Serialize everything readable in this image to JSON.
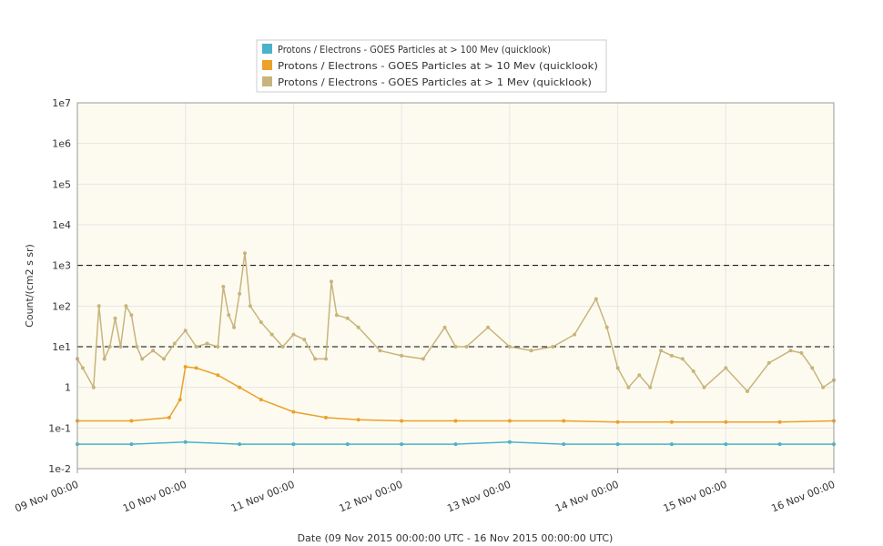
{
  "chart_data": {
    "type": "line",
    "title": "",
    "xlabel": "Date (09 Nov 2015 00:00:00 UTC - 16 Nov 2015 00:00:00 UTC)",
    "ylabel": "Count/(cm2 s sr)",
    "x_unit": "days since 09 Nov 2015 00:00 UTC",
    "xlim": [
      0,
      7
    ],
    "ylim": [
      0.01,
      10000000
    ],
    "y_scale": "log",
    "x_ticks": [
      {
        "x": 0,
        "label": "09 Nov 00:00"
      },
      {
        "x": 1,
        "label": "10 Nov 00:00"
      },
      {
        "x": 2,
        "label": "11 Nov 00:00"
      },
      {
        "x": 3,
        "label": "12 Nov 00:00"
      },
      {
        "x": 4,
        "label": "13 Nov 00:00"
      },
      {
        "x": 5,
        "label": "14 Nov 00:00"
      },
      {
        "x": 6,
        "label": "15 Nov 00:00"
      },
      {
        "x": 7,
        "label": "16 Nov 00:00"
      }
    ],
    "y_ticks": [
      {
        "v": 0.01,
        "label": "1e-2"
      },
      {
        "v": 0.1,
        "label": "1e-1"
      },
      {
        "v": 1,
        "label": "1"
      },
      {
        "v": 10,
        "label": "1e1"
      },
      {
        "v": 100,
        "label": "1e2"
      },
      {
        "v": 1000,
        "label": "1e3"
      },
      {
        "v": 10000,
        "label": "1e4"
      },
      {
        "v": 100000,
        "label": "1e5"
      },
      {
        "v": 1000000,
        "label": "1e6"
      },
      {
        "v": 10000000,
        "label": "1e7"
      }
    ],
    "threshold_lines": [
      10,
      1000
    ],
    "grid": true,
    "legend_position": "top-center",
    "colors": {
      "plot_bg": "#fdfbf0",
      "grid": "#e6e6e6",
      "axis": "#999999",
      "threshold": "#000000"
    },
    "series": [
      {
        "name": "Protons / Electrons - GOES Particles at > 100 Mev (quicklook)",
        "color": "#4bb3c9",
        "x": [
          0,
          0.5,
          1,
          1.5,
          2,
          2.5,
          3,
          3.5,
          4,
          4.5,
          5,
          5.5,
          6,
          6.5,
          7
        ],
        "values": [
          0.04,
          0.04,
          0.045,
          0.04,
          0.04,
          0.04,
          0.04,
          0.04,
          0.045,
          0.04,
          0.04,
          0.04,
          0.04,
          0.04,
          0.04
        ]
      },
      {
        "name": "Protons / Electrons - GOES Particles at > 10 Mev (quicklook)",
        "color": "#eba12a",
        "x": [
          0,
          0.5,
          0.85,
          0.95,
          1.0,
          1.1,
          1.3,
          1.5,
          1.7,
          2.0,
          2.3,
          2.6,
          3,
          3.5,
          4,
          4.5,
          5,
          5.5,
          6,
          6.5,
          7
        ],
        "values": [
          0.15,
          0.15,
          0.18,
          0.5,
          3.2,
          3.0,
          2.0,
          1.0,
          0.5,
          0.25,
          0.18,
          0.16,
          0.15,
          0.15,
          0.15,
          0.15,
          0.14,
          0.14,
          0.14,
          0.14,
          0.15
        ]
      },
      {
        "name": "Protons / Electrons - GOES Particles at > 1 Mev (quicklook)",
        "color": "#c8b47c",
        "x": [
          0,
          0.05,
          0.15,
          0.2,
          0.25,
          0.3,
          0.35,
          0.4,
          0.45,
          0.5,
          0.55,
          0.6,
          0.7,
          0.8,
          0.9,
          1.0,
          1.1,
          1.2,
          1.3,
          1.35,
          1.4,
          1.45,
          1.5,
          1.55,
          1.6,
          1.7,
          1.8,
          1.9,
          2.0,
          2.1,
          2.2,
          2.3,
          2.35,
          2.4,
          2.5,
          2.6,
          2.8,
          3.0,
          3.2,
          3.4,
          3.5,
          3.6,
          3.8,
          4.0,
          4.2,
          4.4,
          4.6,
          4.8,
          4.9,
          5.0,
          5.1,
          5.2,
          5.3,
          5.4,
          5.5,
          5.6,
          5.7,
          5.8,
          6.0,
          6.2,
          6.4,
          6.6,
          6.7,
          6.8,
          6.9,
          7.0
        ],
        "values": [
          5,
          3,
          1,
          100,
          5,
          10,
          50,
          10,
          100,
          60,
          10,
          5,
          8,
          5,
          12,
          25,
          10,
          12,
          10,
          300,
          60,
          30,
          200,
          2000,
          100,
          40,
          20,
          10,
          20,
          15,
          5,
          5,
          400,
          60,
          50,
          30,
          8,
          6,
          5,
          30,
          10,
          10,
          30,
          10,
          8,
          10,
          20,
          150,
          30,
          3,
          1,
          2,
          1,
          8,
          6,
          5,
          2.5,
          1,
          3,
          0.8,
          4,
          8,
          7,
          3,
          1,
          1.5
        ]
      }
    ]
  }
}
